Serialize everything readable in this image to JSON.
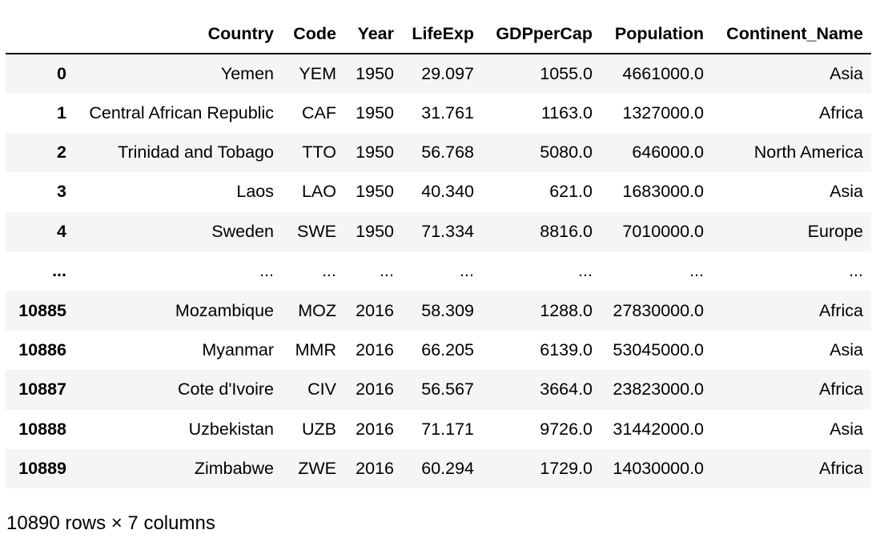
{
  "table": {
    "index_header": "",
    "columns": [
      "Country",
      "Code",
      "Year",
      "LifeExp",
      "GDPperCap",
      "Population",
      "Continent_Name"
    ],
    "rows": [
      {
        "index": "0",
        "cells": [
          "Yemen",
          "YEM",
          "1950",
          "29.097",
          "1055.0",
          "4661000.0",
          "Asia"
        ]
      },
      {
        "index": "1",
        "cells": [
          "Central African Republic",
          "CAF",
          "1950",
          "31.761",
          "1163.0",
          "1327000.0",
          "Africa"
        ]
      },
      {
        "index": "2",
        "cells": [
          "Trinidad and Tobago",
          "TTO",
          "1950",
          "56.768",
          "5080.0",
          "646000.0",
          "North America"
        ]
      },
      {
        "index": "3",
        "cells": [
          "Laos",
          "LAO",
          "1950",
          "40.340",
          "621.0",
          "1683000.0",
          "Asia"
        ]
      },
      {
        "index": "4",
        "cells": [
          "Sweden",
          "SWE",
          "1950",
          "71.334",
          "8816.0",
          "7010000.0",
          "Europe"
        ]
      },
      {
        "index": "...",
        "cells": [
          "...",
          "...",
          "...",
          "...",
          "...",
          "...",
          "..."
        ]
      },
      {
        "index": "10885",
        "cells": [
          "Mozambique",
          "MOZ",
          "2016",
          "58.309",
          "1288.0",
          "27830000.0",
          "Africa"
        ]
      },
      {
        "index": "10886",
        "cells": [
          "Myanmar",
          "MMR",
          "2016",
          "66.205",
          "6139.0",
          "53045000.0",
          "Asia"
        ]
      },
      {
        "index": "10887",
        "cells": [
          "Cote d'Ivoire",
          "CIV",
          "2016",
          "56.567",
          "3664.0",
          "23823000.0",
          "Africa"
        ]
      },
      {
        "index": "10888",
        "cells": [
          "Uzbekistan",
          "UZB",
          "2016",
          "71.171",
          "9726.0",
          "31442000.0",
          "Asia"
        ]
      },
      {
        "index": "10889",
        "cells": [
          "Zimbabwe",
          "ZWE",
          "2016",
          "60.294",
          "1729.0",
          "14030000.0",
          "Africa"
        ]
      }
    ]
  },
  "shape_info": "10890 rows × 7 columns",
  "colors": {
    "stripe": "#f5f5f5",
    "background": "#ffffff",
    "text": "#000000",
    "header_rule": "#000000"
  }
}
